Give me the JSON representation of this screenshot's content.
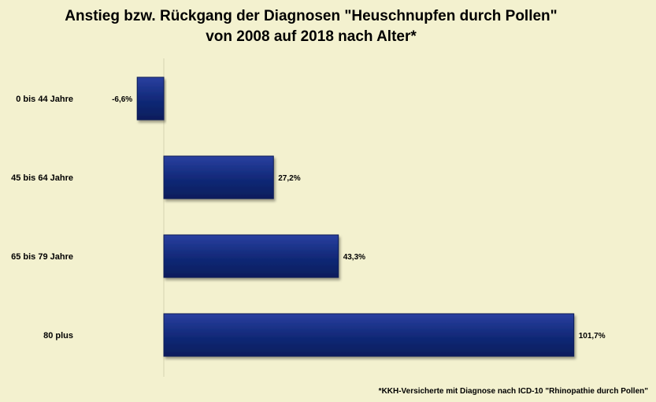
{
  "chart_data": {
    "type": "bar",
    "orientation": "horizontal",
    "title_line1": "Anstieg bzw. Rückgang der Diagnosen \"Heuschnupfen durch Pollen\"",
    "title_line2": "von 2008 auf 2018  nach Alter*",
    "categories": [
      "0 bis 44 Jahre",
      "45 bis 64 Jahre",
      "65 bis 79 Jahre",
      "80 plus"
    ],
    "values": [
      -6.6,
      27.2,
      43.3,
      101.7
    ],
    "data_labels": [
      "-6,6%",
      "27,2%",
      "43,3%",
      "101,7%"
    ],
    "bar_color": "#122a7a",
    "background_color": "#f3f1cf",
    "grid": false,
    "legend": "none"
  },
  "footnote": "*KKH-Versicherte mit Diagnose nach ICD-10 \"Rhinopathie durch Pollen\""
}
